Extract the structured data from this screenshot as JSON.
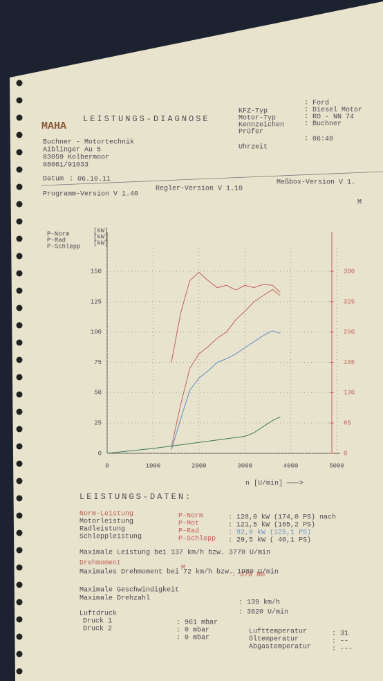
{
  "header": {
    "logo": "MAHA",
    "title": "LEISTUNGS-DIAGNOSE",
    "address": [
      "Buchner - Motortechnik",
      "Aiblinger Au 5",
      "83059 Kolbermoor",
      "08061/91033"
    ],
    "fields": [
      {
        "label": "KFZ-Typ",
        "value": "Ford"
      },
      {
        "label": "Motor-Typ",
        "value": "Diesel Motor"
      },
      {
        "label": "Kennzeichen",
        "value": "RO - NN 74"
      },
      {
        "label": "Prüfer",
        "value": "Buchner"
      },
      {
        "label": "Uhrzeit",
        "value": "06:48"
      }
    ],
    "date_label": "Datum",
    "date": "06.10.11",
    "versions": [
      "Programm-Version V 1.40",
      "Regler-Version V 1.10",
      "Meßbox-Version V 1."
    ]
  },
  "chart_data": {
    "type": "line",
    "xlabel": "n [U/min] ———>",
    "x": [
      0,
      500,
      1000,
      1400,
      1600,
      1800,
      2000,
      2200,
      2400,
      2600,
      2800,
      3000,
      3200,
      3400,
      3600,
      3770
    ],
    "series": [
      {
        "name": "P-Norm",
        "unit": "[kW]",
        "color": "#c0605a",
        "values": [
          null,
          null,
          null,
          5,
          40,
          70,
          82,
          88,
          95,
          100,
          110,
          117,
          125,
          130,
          135,
          130
        ]
      },
      {
        "name": "P-Rad",
        "unit": "[kW]",
        "color": "#5f8cc4",
        "values": [
          null,
          null,
          null,
          3,
          28,
          52,
          62,
          68,
          75,
          78,
          82,
          87,
          92,
          97,
          101,
          99
        ]
      },
      {
        "name": "P-Schlepp",
        "unit": "[kW]",
        "color": "#3f7a56",
        "values": [
          0,
          2,
          4,
          6,
          7,
          8,
          9,
          10,
          11,
          12,
          13,
          14,
          17,
          22,
          27,
          30
        ]
      },
      {
        "name": "M",
        "color": "#c0605a",
        "axis": "y2",
        "values": [
          null,
          null,
          null,
          195,
          300,
          370,
          388,
          370,
          355,
          360,
          350,
          360,
          355,
          362,
          360,
          345
        ]
      }
    ],
    "xlim": [
      0,
      5000
    ],
    "xticks": [
      0,
      1000,
      2000,
      3000,
      4000,
      5000
    ],
    "ylim": [
      0,
      170
    ],
    "yticks": [
      0,
      25,
      50,
      75,
      100,
      125,
      150
    ],
    "y2lim": [
      0,
      442
    ],
    "y2ticks": [
      0,
      65,
      130,
      195,
      260,
      325,
      390
    ],
    "grid": true
  },
  "data": {
    "title": "LEISTUNGS-DATEN:",
    "power": [
      [
        "Norm-Leistung",
        "P-Norm",
        ": 128,0 kW (174,0 PS) nach"
      ],
      [
        "Motorleistung",
        "P-Mot",
        ": 121,5 kW (165,2 PS)"
      ],
      [
        "Radleistung",
        "P-Rad",
        ": 92,0 kW (125,1 PS)"
      ],
      [
        "Schleppleistung",
        "P-Schlepp",
        ": 29,5 kW ( 40,1 PS)"
      ]
    ],
    "max_power": "Maximale Leistung bei 137 km/h bzw. 3770 U/min",
    "torque_label": "Drehmoment",
    "torque_symbol": "M",
    "max_torque": "Maximales Drehmoment bei 72 km/h bzw. 1980 U/min",
    "torque_value": ": 378 Nm",
    "speed_label": "Maximale Geschwindigkeit",
    "speed_value": ": 139 km/h",
    "rpm_label": "Maximale Drehzahl",
    "rpm_value": ": 3820 U/min",
    "pressure_label": "Luftdruck",
    "pressures": [
      [
        "Druck 1",
        ": 961 mbar"
      ],
      [
        "Druck 2",
        ": 0 mbar"
      ],
      [
        "",
        ": 0 mbar"
      ]
    ],
    "temps": [
      [
        "Lufttemperatur",
        ": 31"
      ],
      [
        "Öltemperatur",
        ": --"
      ],
      [
        "Abgastemperatur",
        ": ---"
      ]
    ]
  }
}
